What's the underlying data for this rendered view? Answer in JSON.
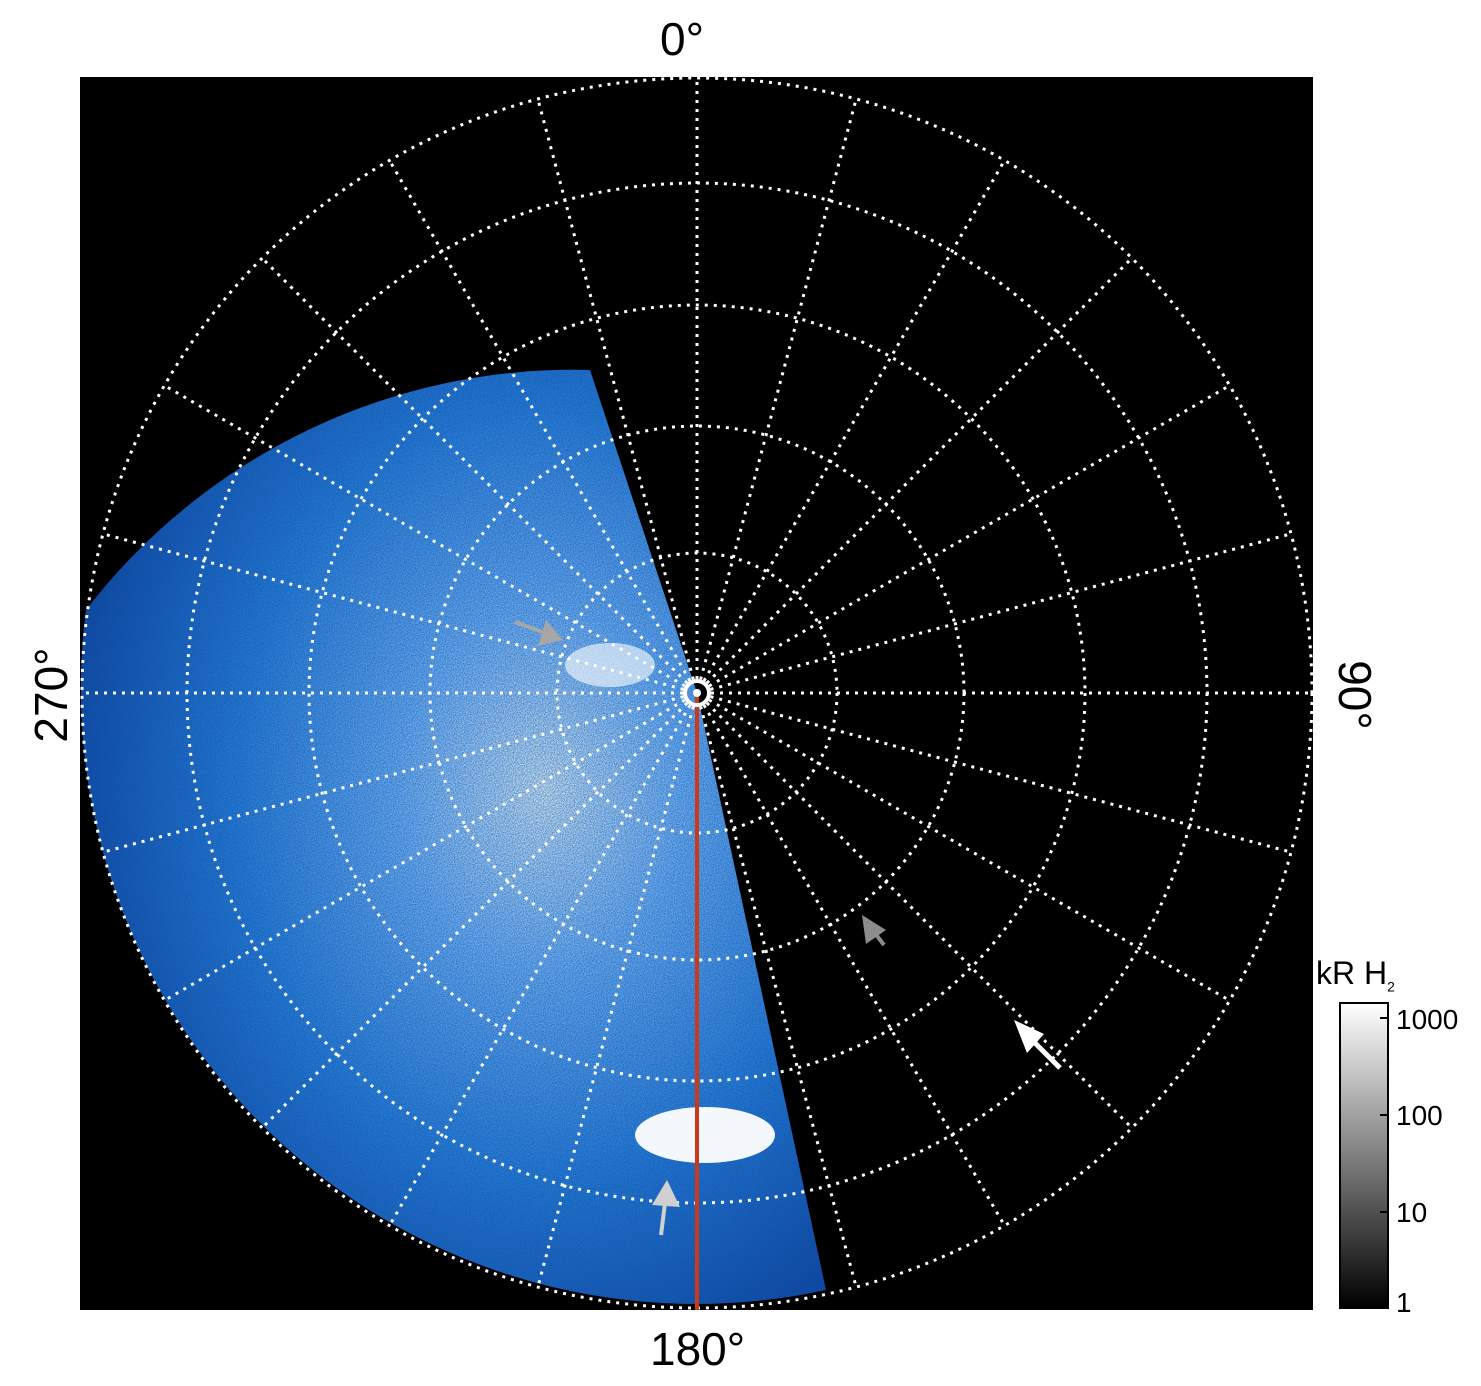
{
  "axes": {
    "top": "0°",
    "right": "90°",
    "bottom": "180°",
    "left": "270°"
  },
  "colorbar": {
    "title_main": "kR H",
    "title_sub": "2",
    "ticks": [
      "1000",
      "100",
      "10",
      "1"
    ],
    "scale": "log"
  },
  "colors": {
    "background": "#000000",
    "grid": "#ffffff",
    "emission_low": "#0a2a8a",
    "emission_mid": "#2f7fe0",
    "emission_high": "#ffffff",
    "meridian_line": "#c83a1a",
    "arrow_gray": "#a6a6a6",
    "arrow_white": "#ffffff"
  },
  "icons": [
    "gray-arrow-icon",
    "white-arrow-icon",
    "pole-marker-icon"
  ]
}
